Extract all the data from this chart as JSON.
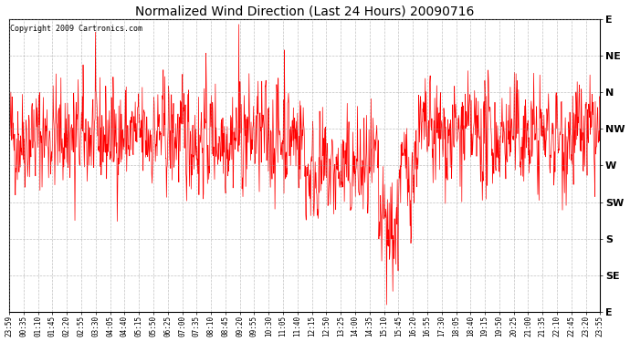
{
  "title": "Normalized Wind Direction (Last 24 Hours) 20090716",
  "copyright_text": "Copyright 2009 Cartronics.com",
  "line_color": "#FF0000",
  "background_color": "#FFFFFF",
  "grid_color": "#999999",
  "ytick_labels": [
    "E",
    "NE",
    "N",
    "NW",
    "W",
    "SW",
    "S",
    "SE",
    "E"
  ],
  "ytick_values": [
    8,
    7,
    6,
    5,
    4,
    3,
    2,
    1,
    0
  ],
  "xtick_labels": [
    "23:59",
    "00:35",
    "01:10",
    "01:45",
    "02:20",
    "02:55",
    "03:30",
    "04:05",
    "04:40",
    "05:15",
    "05:50",
    "06:25",
    "07:00",
    "07:35",
    "08:10",
    "08:45",
    "09:20",
    "09:55",
    "10:30",
    "11:05",
    "11:40",
    "12:15",
    "12:50",
    "13:25",
    "14:00",
    "14:35",
    "15:10",
    "15:45",
    "16:20",
    "16:55",
    "17:30",
    "18:05",
    "18:40",
    "19:15",
    "19:50",
    "20:25",
    "21:00",
    "21:35",
    "22:10",
    "22:45",
    "23:20",
    "23:55"
  ],
  "ylim": [
    0,
    8
  ],
  "num_points": 1440,
  "seed": 42
}
